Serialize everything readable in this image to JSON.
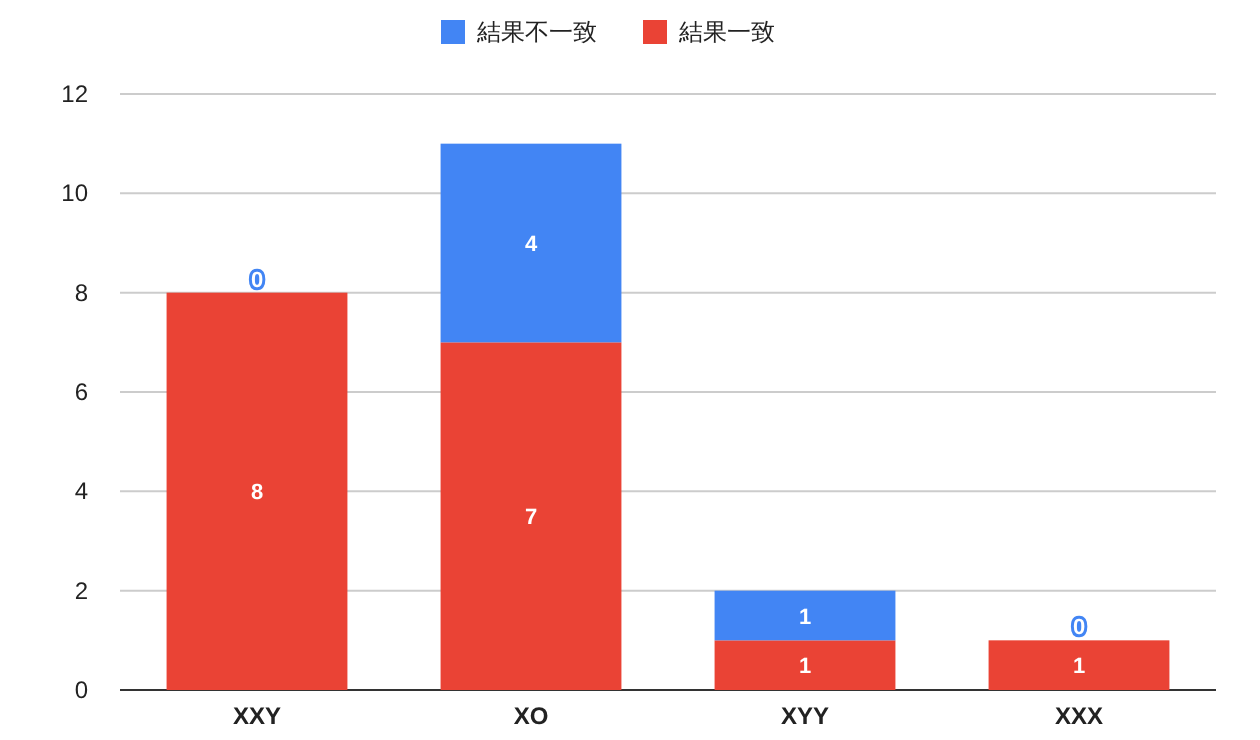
{
  "chart_data": {
    "type": "bar",
    "stacked": true,
    "categories": [
      "XXY",
      "XO",
      "XYY",
      "XXX"
    ],
    "series": [
      {
        "name": "結果一致",
        "color": "#ea4335",
        "values": [
          8,
          7,
          1,
          1
        ]
      },
      {
        "name": "結果不一致",
        "color": "#4285f4",
        "values": [
          0,
          4,
          1,
          0
        ]
      }
    ],
    "ylim": [
      0,
      12
    ],
    "yticks": [
      0,
      2,
      4,
      6,
      8,
      10,
      12
    ],
    "grid": "y",
    "legend": "top",
    "data_labels": true
  }
}
